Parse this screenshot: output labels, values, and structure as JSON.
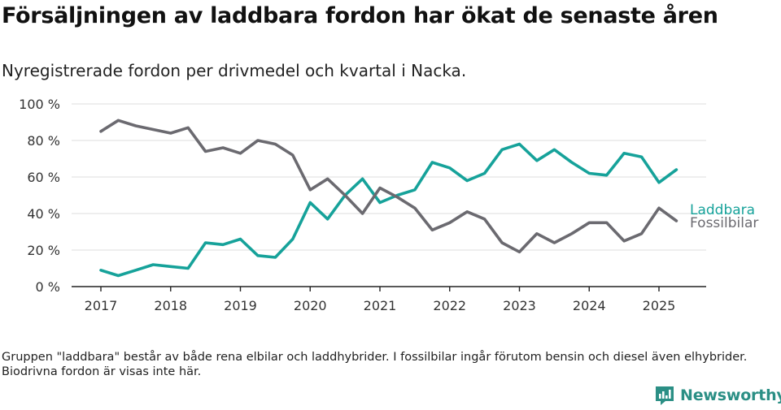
{
  "title": "Försäljningen av laddbara fordon har ökat de senaste åren",
  "subtitle": "Nyregistrerade fordon per drivmedel och kvartal i Nacka.",
  "footnote": "Gruppen \"laddbara\" består av både rena elbilar och laddhybrider. I fossilbilar ingår förutom bensin och diesel även elhybrider. Biodrivna fordon är visas inte här.",
  "brand": {
    "name": "Newsworthy",
    "color": "#2b8f85",
    "icon": "newsworthy-logo-icon"
  },
  "chart_data": {
    "type": "line",
    "y_ticks": [
      "100 %",
      "80 %",
      "60 %",
      "40 %",
      "20 %",
      "0 %"
    ],
    "y_tick_values": [
      100,
      80,
      60,
      40,
      20,
      0
    ],
    "x_ticks": [
      "2017",
      "2018",
      "2019",
      "2020",
      "2021",
      "2022",
      "2023",
      "2024",
      "2025"
    ],
    "x_tick_values": [
      2017,
      2018,
      2019,
      2020,
      2021,
      2022,
      2023,
      2024,
      2025
    ],
    "ylim": [
      0,
      100
    ],
    "xlim": [
      2016.6,
      2025.7
    ],
    "grid": true,
    "legend": "end-of-line labels",
    "series": [
      {
        "name": "Laddbara",
        "color": "#16a29a",
        "x": [
          2017,
          2017.25,
          2017.5,
          2017.75,
          2018,
          2018.25,
          2018.5,
          2018.75,
          2019,
          2019.25,
          2019.5,
          2019.75,
          2020,
          2020.25,
          2020.5,
          2020.75,
          2021,
          2021.25,
          2021.5,
          2021.75,
          2022,
          2022.25,
          2022.5,
          2022.75,
          2023,
          2023.25,
          2023.5,
          2023.75,
          2024,
          2024.25,
          2024.5,
          2024.75,
          2025,
          2025.25
        ],
        "values": [
          9,
          6,
          9,
          12,
          11,
          10,
          24,
          23,
          26,
          17,
          16,
          26,
          46,
          37,
          50,
          59,
          46,
          50,
          53,
          68,
          65,
          58,
          62,
          75,
          78,
          69,
          75,
          68,
          62,
          61,
          73,
          71,
          57,
          64
        ]
      },
      {
        "name": "Fossilbilar",
        "color": "#6b6a70",
        "x": [
          2017,
          2017.25,
          2017.5,
          2017.75,
          2018,
          2018.25,
          2018.5,
          2018.75,
          2019,
          2019.25,
          2019.5,
          2019.75,
          2020,
          2020.25,
          2020.5,
          2020.75,
          2021,
          2021.25,
          2021.5,
          2021.75,
          2022,
          2022.25,
          2022.5,
          2022.75,
          2023,
          2023.25,
          2023.5,
          2023.75,
          2024,
          2024.25,
          2024.5,
          2024.75,
          2025,
          2025.25
        ],
        "values": [
          85,
          91,
          88,
          86,
          84,
          87,
          74,
          76,
          73,
          80,
          78,
          72,
          53,
          59,
          50,
          40,
          54,
          49,
          43,
          31,
          35,
          41,
          37,
          24,
          19,
          29,
          24,
          29,
          35,
          35,
          25,
          29,
          43,
          36
        ]
      }
    ]
  }
}
